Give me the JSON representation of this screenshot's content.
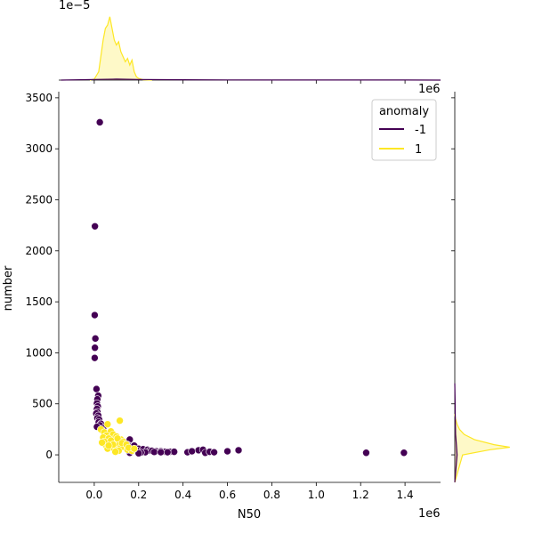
{
  "chart_data": {
    "type": "scatter",
    "title": "",
    "xlabel": "N50",
    "ylabel": "number",
    "xlim": [
      -160000,
      1560000
    ],
    "ylim": [
      -270,
      3560
    ],
    "x_offset_label": "1e6",
    "y_offset_label": "",
    "top_marginal_offset_label": "1e−5",
    "right_marginal_offset_label": "1e6",
    "x_ticks": [
      0,
      200000,
      400000,
      600000,
      800000,
      1000000,
      1200000,
      1400000
    ],
    "x_tick_labels": [
      "0.0",
      "0.2",
      "0.4",
      "0.6",
      "0.8",
      "1.0",
      "1.2",
      "1.4"
    ],
    "y_ticks": [
      0,
      500,
      1000,
      1500,
      2000,
      2500,
      3000,
      3500
    ],
    "y_tick_labels": [
      "0",
      "500",
      "1000",
      "1500",
      "2000",
      "2500",
      "3000",
      "3500"
    ],
    "legend": {
      "title": "anomaly",
      "placement": "top-right"
    },
    "grid": false,
    "series": [
      {
        "name": "-1",
        "color": "#440154",
        "points": [
          [
            25000,
            3260
          ],
          [
            3000,
            2240
          ],
          [
            2000,
            1370
          ],
          [
            5000,
            1140
          ],
          [
            3000,
            1050
          ],
          [
            2000,
            950
          ],
          [
            10000,
            645
          ],
          [
            18000,
            580
          ],
          [
            14000,
            545
          ],
          [
            12000,
            505
          ],
          [
            16000,
            475
          ],
          [
            12000,
            450
          ],
          [
            14000,
            420
          ],
          [
            9000,
            405
          ],
          [
            18000,
            385
          ],
          [
            14000,
            360
          ],
          [
            22000,
            345
          ],
          [
            20000,
            320
          ],
          [
            30000,
            305
          ],
          [
            25000,
            290
          ],
          [
            12000,
            275
          ],
          [
            40000,
            260
          ],
          [
            35000,
            240
          ],
          [
            160000,
            150
          ],
          [
            150000,
            100
          ],
          [
            180000,
            90
          ],
          [
            130000,
            80
          ],
          [
            110000,
            75
          ],
          [
            90000,
            70
          ],
          [
            200000,
            60
          ],
          [
            220000,
            55
          ],
          [
            240000,
            50
          ],
          [
            190000,
            45
          ],
          [
            250000,
            40
          ],
          [
            260000,
            40
          ],
          [
            280000,
            35
          ],
          [
            300000,
            35
          ],
          [
            320000,
            30
          ],
          [
            340000,
            30
          ],
          [
            360000,
            30
          ],
          [
            270000,
            28
          ],
          [
            230000,
            25
          ],
          [
            210000,
            22
          ],
          [
            160000,
            20
          ],
          [
            200000,
            15
          ],
          [
            300000,
            25
          ],
          [
            330000,
            25
          ],
          [
            420000,
            25
          ],
          [
            440000,
            35
          ],
          [
            470000,
            45
          ],
          [
            490000,
            50
          ],
          [
            500000,
            20
          ],
          [
            520000,
            30
          ],
          [
            540000,
            25
          ],
          [
            600000,
            35
          ],
          [
            650000,
            45
          ],
          [
            1225000,
            20
          ],
          [
            1395000,
            20
          ]
        ]
      },
      {
        "name": "1",
        "color": "#fde725",
        "points": [
          [
            115000,
            335
          ],
          [
            60000,
            300
          ],
          [
            30000,
            250
          ],
          [
            45000,
            220
          ],
          [
            75000,
            230
          ],
          [
            55000,
            190
          ],
          [
            85000,
            200
          ],
          [
            100000,
            180
          ],
          [
            40000,
            170
          ],
          [
            65000,
            160
          ],
          [
            120000,
            150
          ],
          [
            130000,
            130
          ],
          [
            80000,
            120
          ],
          [
            95000,
            110
          ],
          [
            50000,
            100
          ],
          [
            110000,
            95
          ],
          [
            70000,
            85
          ],
          [
            140000,
            80
          ],
          [
            60000,
            60
          ],
          [
            90000,
            55
          ],
          [
            150000,
            50
          ],
          [
            100000,
            45
          ],
          [
            170000,
            40
          ],
          [
            120000,
            70
          ],
          [
            75000,
            140
          ],
          [
            105000,
            160
          ],
          [
            45000,
            130
          ],
          [
            35000,
            120
          ],
          [
            85000,
            100
          ],
          [
            125000,
            115
          ],
          [
            145000,
            100
          ],
          [
            65000,
            90
          ],
          [
            155000,
            70
          ],
          [
            180000,
            60
          ],
          [
            110000,
            40
          ],
          [
            95000,
            30
          ]
        ]
      }
    ],
    "top_marginal": {
      "series": [
        {
          "name": "1",
          "color": "#fde725",
          "x": [
            -20000,
            0,
            20000,
            40000,
            50000,
            60000,
            70000,
            80000,
            90000,
            100000,
            110000,
            120000,
            130000,
            140000,
            150000,
            160000,
            170000,
            180000,
            190000,
            200000,
            220000,
            260000
          ],
          "density": [
            0.0,
            0.03,
            0.25,
            1.2,
            1.55,
            1.65,
            1.9,
            1.55,
            1.2,
            1.05,
            1.15,
            0.85,
            0.7,
            0.55,
            0.65,
            0.45,
            0.6,
            0.25,
            0.1,
            0.05,
            0.01,
            0.0
          ]
        },
        {
          "name": "-1",
          "color": "#440154",
          "x": [
            -150000,
            0,
            100000,
            200000,
            400000,
            600000,
            800000,
            1000000,
            1200000,
            1400000,
            1560000
          ],
          "density": [
            0.0,
            0.02,
            0.03,
            0.02,
            0.01,
            0.005,
            0.003,
            0.002,
            0.002,
            0.002,
            0.0
          ]
        }
      ]
    },
    "right_marginal": {
      "series": [
        {
          "name": "1",
          "color": "#fde725",
          "y": [
            -270,
            0,
            50,
            75,
            100,
            150,
            200,
            250,
            300,
            350,
            400
          ],
          "density": [
            0.0,
            0.1,
            0.45,
            0.7,
            0.5,
            0.25,
            0.12,
            0.06,
            0.03,
            0.01,
            0.0
          ]
        },
        {
          "name": "-1",
          "color": "#440154",
          "y": [
            -270,
            0,
            100,
            200,
            300,
            400,
            500,
            600,
            700
          ],
          "density": [
            0.0,
            0.03,
            0.02,
            0.01,
            0.008,
            0.006,
            0.004,
            0.002,
            0.0
          ]
        }
      ]
    }
  }
}
